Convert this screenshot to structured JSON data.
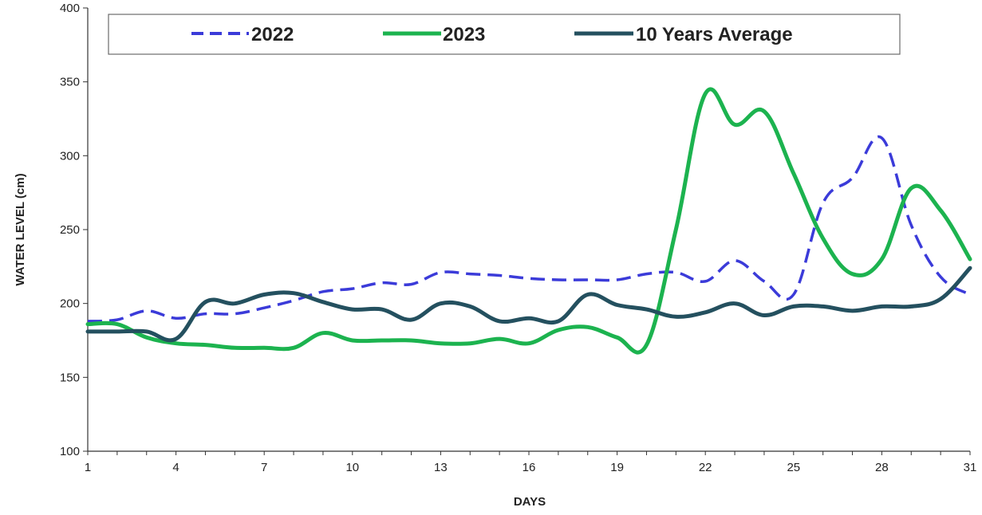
{
  "chart_data": {
    "type": "line",
    "title": "",
    "xlabel": "DAYS",
    "ylabel": "WATER LEVEL (cm)",
    "xlim": [
      1,
      31
    ],
    "ylim": [
      100,
      400
    ],
    "x_ticks": [
      1,
      4,
      7,
      10,
      13,
      16,
      19,
      22,
      25,
      28,
      31
    ],
    "x_tick_labels": [
      "1",
      "4",
      "7",
      "10",
      "13",
      "16",
      "19",
      "22",
      "25",
      "28",
      "31"
    ],
    "y_ticks": [
      100,
      150,
      200,
      250,
      300,
      350,
      400
    ],
    "y_tick_labels": [
      "100",
      "150",
      "200",
      "250",
      "300",
      "350",
      "400"
    ],
    "grid": false,
    "legend_position": "top",
    "x": [
      1,
      2,
      3,
      4,
      5,
      6,
      7,
      8,
      9,
      10,
      11,
      12,
      13,
      14,
      15,
      16,
      17,
      18,
      19,
      20,
      21,
      22,
      23,
      24,
      25,
      26,
      27,
      28,
      29,
      30,
      31
    ],
    "series": [
      {
        "name": "2022",
        "color": "#3b3bd9",
        "style": "dashed",
        "values": [
          188,
          189,
          195,
          190,
          193,
          193,
          197,
          202,
          208,
          210,
          214,
          213,
          221,
          220,
          219,
          217,
          216,
          216,
          216,
          220,
          221,
          215,
          229,
          215,
          206,
          268,
          285,
          312,
          253,
          218,
          206
        ]
      },
      {
        "name": "2023",
        "color": "#1cb34f",
        "style": "solid",
        "values": [
          186,
          186,
          177,
          173,
          172,
          170,
          170,
          170,
          180,
          175,
          175,
          175,
          173,
          173,
          176,
          173,
          182,
          184,
          177,
          172,
          250,
          342,
          321,
          330,
          288,
          244,
          220,
          230,
          278,
          263,
          230
        ]
      },
      {
        "name": "10 Years Average",
        "color": "#24505f",
        "style": "solid",
        "values": [
          181,
          181,
          181,
          176,
          201,
          200,
          206,
          207,
          201,
          196,
          196,
          189,
          200,
          198,
          188,
          190,
          188,
          206,
          199,
          196,
          191,
          194,
          200,
          192,
          198,
          198,
          195,
          198,
          198,
          203,
          224
        ]
      }
    ]
  }
}
